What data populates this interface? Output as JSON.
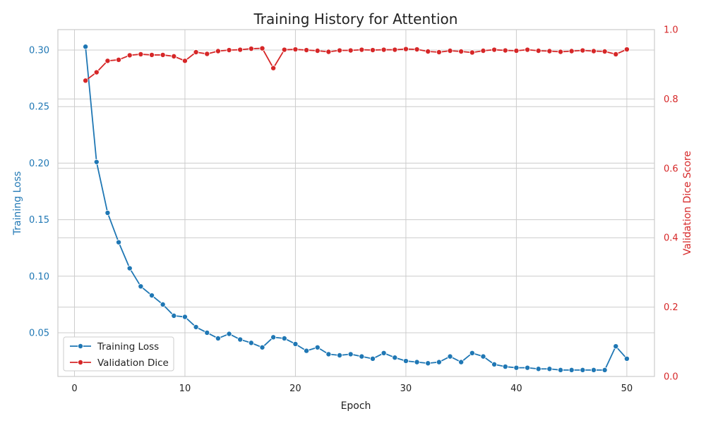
{
  "chart_data": {
    "type": "line",
    "title": "Training History for Attention",
    "xlabel": "Epoch",
    "ylabel_left": "Training Loss",
    "ylabel_right": "Validation Dice Score",
    "xlim": [
      -1.5,
      52.5
    ],
    "xticks": [
      0,
      10,
      20,
      30,
      40,
      50
    ],
    "ylim_left": [
      0.0113,
      0.3181
    ],
    "yticks_left": [
      0.05,
      0.1,
      0.15,
      0.2,
      0.25,
      0.3
    ],
    "ylim_right": [
      0,
      1.0
    ],
    "yticks_right": [
      0,
      0.2,
      0.4,
      0.6,
      0.8,
      1.0
    ],
    "grid": true,
    "legend_position": "lower-left",
    "x": [
      1,
      2,
      3,
      4,
      5,
      6,
      7,
      8,
      9,
      10,
      11,
      12,
      13,
      14,
      15,
      16,
      17,
      18,
      19,
      20,
      21,
      22,
      23,
      24,
      25,
      26,
      27,
      28,
      29,
      30,
      31,
      32,
      33,
      34,
      35,
      36,
      37,
      38,
      39,
      40,
      41,
      42,
      43,
      44,
      45,
      46,
      47,
      48,
      49,
      50
    ],
    "series": [
      {
        "name": "Training Loss",
        "axis": "left",
        "color": "#1f77b4",
        "marker": "circle",
        "values": [
          0.303,
          0.201,
          0.156,
          0.13,
          0.107,
          0.091,
          0.083,
          0.075,
          0.065,
          0.064,
          0.055,
          0.05,
          0.045,
          0.049,
          0.044,
          0.041,
          0.037,
          0.046,
          0.045,
          0.04,
          0.034,
          0.037,
          0.031,
          0.03,
          0.031,
          0.029,
          0.027,
          0.032,
          0.028,
          0.025,
          0.024,
          0.023,
          0.024,
          0.029,
          0.024,
          0.032,
          0.029,
          0.022,
          0.02,
          0.019,
          0.019,
          0.018,
          0.018,
          0.017,
          0.017,
          0.017,
          0.017,
          0.017,
          0.038,
          0.027
        ]
      },
      {
        "name": "Validation Dice",
        "axis": "right",
        "color": "#d62728",
        "marker": "circle",
        "values": [
          0.853,
          0.877,
          0.91,
          0.913,
          0.926,
          0.929,
          0.927,
          0.927,
          0.923,
          0.91,
          0.935,
          0.93,
          0.938,
          0.941,
          0.942,
          0.945,
          0.946,
          0.889,
          0.942,
          0.943,
          0.941,
          0.939,
          0.936,
          0.94,
          0.94,
          0.942,
          0.941,
          0.942,
          0.942,
          0.944,
          0.943,
          0.937,
          0.935,
          0.939,
          0.937,
          0.934,
          0.939,
          0.942,
          0.94,
          0.939,
          0.942,
          0.939,
          0.938,
          0.936,
          0.938,
          0.94,
          0.938,
          0.937,
          0.929,
          0.943
        ]
      }
    ]
  }
}
